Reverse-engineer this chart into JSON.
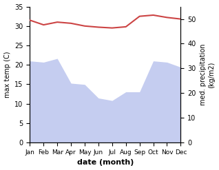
{
  "months": [
    "Jan",
    "Feb",
    "Mar",
    "Apr",
    "May",
    "Jun",
    "Jul",
    "Aug",
    "Sep",
    "Oct",
    "Nov",
    "Dec"
  ],
  "month_indices": [
    0,
    1,
    2,
    3,
    4,
    5,
    6,
    7,
    8,
    9,
    10,
    11
  ],
  "max_temp": [
    31.5,
    30.3,
    31.0,
    30.7,
    30.0,
    29.7,
    29.5,
    29.8,
    32.5,
    32.8,
    32.2,
    31.8
  ],
  "precipitation": [
    33.0,
    32.5,
    34.0,
    24.0,
    23.5,
    18.0,
    17.0,
    20.5,
    20.5,
    33.0,
    32.5,
    30.5
  ],
  "temp_color": "#cc4444",
  "precip_fill_color": "#c5cdf0",
  "temp_ylim": [
    0,
    35
  ],
  "precip_ylim": [
    0,
    55
  ],
  "temp_yticks": [
    0,
    5,
    10,
    15,
    20,
    25,
    30,
    35
  ],
  "precip_yticks": [
    0,
    10,
    20,
    30,
    40,
    50
  ],
  "xlabel": "date (month)",
  "ylabel_left": "max temp (C)",
  "ylabel_right": "med. precipitation\n(kg/m2)",
  "background_color": "#ffffff",
  "temp_linewidth": 1.5,
  "label_fontsize": 7,
  "tick_fontsize": 7,
  "month_fontsize": 6.5,
  "xlabel_fontsize": 8
}
